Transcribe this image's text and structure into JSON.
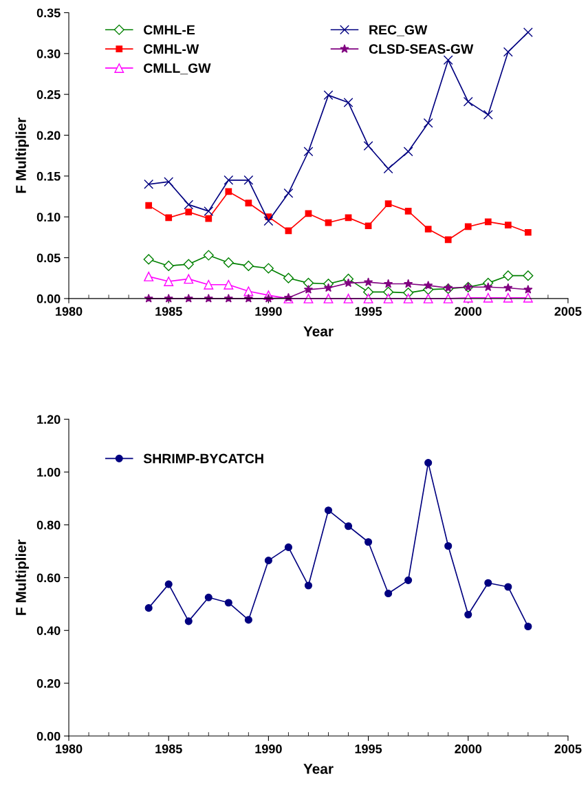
{
  "chart_data": [
    {
      "type": "line",
      "xlabel": "Year",
      "ylabel": "F Multiplier",
      "xlim": [
        1980,
        2005
      ],
      "xticks": [
        1980,
        1985,
        1990,
        1995,
        2000,
        2005
      ],
      "ylim": [
        0,
        0.35
      ],
      "yticks": [
        {
          "value": 0,
          "label": "0.00"
        },
        {
          "value": 0.05,
          "label": "0.05"
        },
        {
          "value": 0.1,
          "label": "0.10"
        },
        {
          "value": 0.15,
          "label": "0.15"
        },
        {
          "value": 0.2,
          "label": "0.20"
        },
        {
          "value": 0.25,
          "label": "0.25"
        },
        {
          "value": 0.3,
          "label": "0.30"
        },
        {
          "value": 0.35,
          "label": "0.35"
        }
      ],
      "grid": false,
      "legend": "top",
      "x": [
        1984,
        1985,
        1986,
        1987,
        1988,
        1989,
        1990,
        1991,
        1992,
        1993,
        1994,
        1995,
        1996,
        1997,
        1998,
        1999,
        2000,
        2001,
        2002,
        2003
      ],
      "series": [
        {
          "name": "CMHL-E",
          "color": "#008000",
          "marker": "diamond",
          "values": [
            0.048,
            0.04,
            0.042,
            0.053,
            0.044,
            0.04,
            0.037,
            0.025,
            0.019,
            0.018,
            0.024,
            0.008,
            0.008,
            0.007,
            0.011,
            0.012,
            0.014,
            0.019,
            0.028,
            0.028
          ]
        },
        {
          "name": "CMHL-W",
          "color": "#ff0000",
          "marker": "square",
          "values": [
            0.114,
            0.099,
            0.106,
            0.098,
            0.131,
            0.117,
            0.1,
            0.083,
            0.104,
            0.093,
            0.099,
            0.089,
            0.116,
            0.107,
            0.085,
            0.072,
            0.088,
            0.094,
            0.09,
            0.081
          ]
        },
        {
          "name": "CMLL_GW",
          "color": "#ff00ff",
          "marker": "triangle",
          "values": [
            0.027,
            0.021,
            0.024,
            0.017,
            0.017,
            0.009,
            0.004,
            0.0,
            0.0,
            0.0,
            0.0,
            0.0,
            0.0,
            0.0,
            0.0,
            0.0,
            0.001,
            0.001,
            0.001,
            0.001
          ]
        },
        {
          "name": "REC_GW",
          "color": "#000080",
          "marker": "cross",
          "values": [
            0.14,
            0.143,
            0.115,
            0.107,
            0.145,
            0.145,
            0.095,
            0.129,
            0.18,
            0.249,
            0.24,
            0.187,
            0.159,
            0.18,
            0.215,
            0.292,
            0.241,
            0.225,
            0.302,
            0.326
          ]
        },
        {
          "name": "CLSD-SEAS-GW",
          "color": "#800080",
          "marker": "star",
          "values": [
            0.0,
            0.0,
            0.0,
            0.0,
            0.0,
            0.0,
            0.0,
            0.001,
            0.011,
            0.013,
            0.019,
            0.02,
            0.018,
            0.018,
            0.016,
            0.013,
            0.014,
            0.014,
            0.013,
            0.011
          ]
        }
      ]
    },
    {
      "type": "line",
      "xlabel": "Year",
      "ylabel": "F Multiplier",
      "xlim": [
        1980,
        2005
      ],
      "xticks": [
        1980,
        1985,
        1990,
        1995,
        2000,
        2005
      ],
      "ylim": [
        0,
        1.2
      ],
      "yticks": [
        {
          "value": 0,
          "label": "0.00"
        },
        {
          "value": 0.2,
          "label": "0.20"
        },
        {
          "value": 0.4,
          "label": "0.40"
        },
        {
          "value": 0.6,
          "label": "0.60"
        },
        {
          "value": 0.8,
          "label": "0.80"
        },
        {
          "value": 1.0,
          "label": "1.00"
        },
        {
          "value": 1.2,
          "label": "1.20"
        }
      ],
      "grid": false,
      "legend": "top left",
      "x": [
        1984,
        1985,
        1986,
        1987,
        1988,
        1989,
        1990,
        1991,
        1992,
        1993,
        1994,
        1995,
        1996,
        1997,
        1998,
        1999,
        2000,
        2001,
        2002,
        2003
      ],
      "series": [
        {
          "name": "SHRIMP-BYCATCH",
          "color": "#000080",
          "marker": "circle",
          "values": [
            0.485,
            0.575,
            0.435,
            0.525,
            0.505,
            0.44,
            0.665,
            0.715,
            0.57,
            0.855,
            0.795,
            0.735,
            0.54,
            0.59,
            1.035,
            0.72,
            0.46,
            0.58,
            0.565,
            0.415
          ]
        }
      ]
    }
  ]
}
